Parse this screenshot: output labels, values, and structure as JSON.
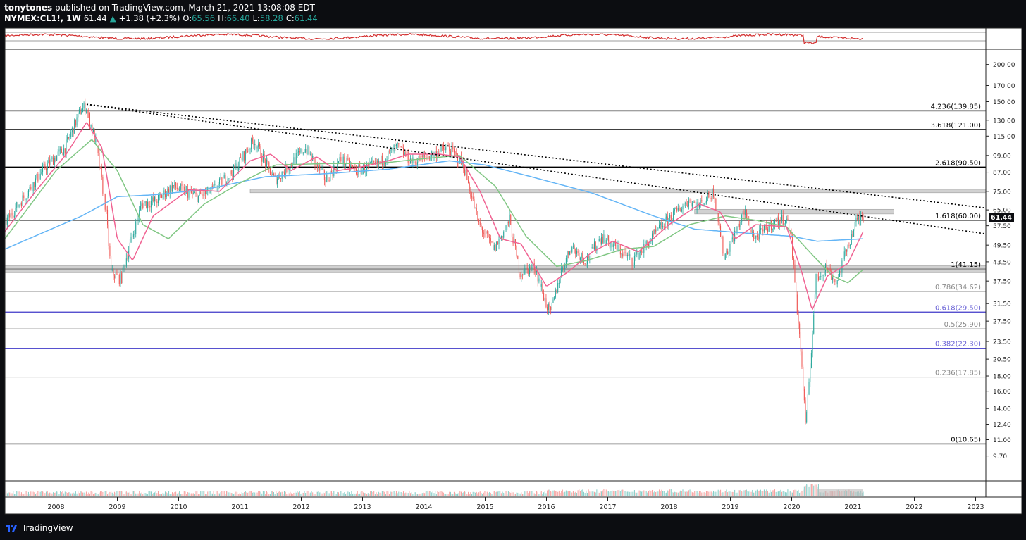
{
  "header": {
    "publisher": "tonytones",
    "published_on": "published on TradingView.com, March 21, 2021 13:08:08 EDT",
    "symbol": "NYMEX:CL1!, 1W",
    "last": "61.44",
    "change": "+1.38 (+2.3%)",
    "o_label": "O:",
    "o_value": "65.56",
    "h_label": "H:",
    "h_value": "66.40",
    "l_label": "L:",
    "l_value": "58.28",
    "c_label": "C:",
    "c_value": "61.44"
  },
  "footer": {
    "brand": "TradingView"
  },
  "colors": {
    "background": "#ffffff",
    "up": "#26a69a",
    "down": "#ef5350",
    "ma_fast": "#f06292",
    "ma_mid": "#81c784",
    "ma_slow": "#64b5f6",
    "indicator": "#d32f2f",
    "fib_blue": "#3f38c8",
    "fib_gray": "#888888"
  },
  "chart_data": {
    "type": "candlestick",
    "scale": "log",
    "ylim": [
      8,
      225
    ],
    "xlim": [
      "2007-03",
      "2023-03"
    ],
    "price_ticks": [
      "200.00",
      "170.00",
      "150.00",
      "130.00",
      "115.00",
      "99.00",
      "87.00",
      "75.00",
      "65.00",
      "57.50",
      "49.50",
      "43.50",
      "37.50",
      "31.50",
      "27.50",
      "23.50",
      "20.50",
      "18.00",
      "16.00",
      "14.00",
      "12.40",
      "11.00",
      "9.70"
    ],
    "price_tick_values": [
      200,
      170,
      150,
      130,
      115,
      99,
      87,
      75,
      65,
      57.5,
      49.5,
      43.5,
      37.5,
      31.5,
      27.5,
      23.5,
      20.5,
      18,
      16,
      14,
      12.4,
      11,
      9.7
    ],
    "year_ticks": [
      "2008",
      "2009",
      "2010",
      "2011",
      "2012",
      "2013",
      "2014",
      "2015",
      "2016",
      "2017",
      "2018",
      "2019",
      "2020",
      "2021",
      "2022",
      "2023"
    ],
    "last_price_label": "61.44",
    "fib_levels": [
      {
        "label": "4.236(139.85)",
        "value": 139.85,
        "style": "black"
      },
      {
        "label": "3.618(121.00)",
        "value": 121.0,
        "style": "black"
      },
      {
        "label": "2.618(90.50)",
        "value": 90.5,
        "style": "black"
      },
      {
        "label": "1.618(60.00)",
        "value": 60.0,
        "style": "black"
      },
      {
        "label": "1(41.15)",
        "value": 41.15,
        "style": "black"
      },
      {
        "label": "0.786(34.62)",
        "value": 34.62,
        "style": "gray"
      },
      {
        "label": "0.618(29.50)",
        "value": 29.5,
        "style": "blue"
      },
      {
        "label": "0.5(25.90)",
        "value": 25.9,
        "style": "gray"
      },
      {
        "label": "0.382(22.30)",
        "value": 22.3,
        "style": "blue"
      },
      {
        "label": "0.236(17.85)",
        "value": 17.85,
        "style": "gray"
      },
      {
        "label": "0(10.65)",
        "value": 10.65,
        "style": "black"
      }
    ],
    "price_path": [
      [
        "2007-03",
        58
      ],
      [
        "2007-07",
        72
      ],
      [
        "2007-11",
        90
      ],
      [
        "2008-03",
        105
      ],
      [
        "2008-06",
        140
      ],
      [
        "2008-07",
        145
      ],
      [
        "2008-09",
        110
      ],
      [
        "2008-11",
        65
      ],
      [
        "2008-12",
        40
      ],
      [
        "2009-02",
        38
      ],
      [
        "2009-03",
        45
      ],
      [
        "2009-06",
        68
      ],
      [
        "2009-09",
        70
      ],
      [
        "2009-12",
        78
      ],
      [
        "2010-05",
        72
      ],
      [
        "2010-08",
        76
      ],
      [
        "2010-12",
        88
      ],
      [
        "2011-04",
        112
      ],
      [
        "2011-06",
        95
      ],
      [
        "2011-08",
        82
      ],
      [
        "2011-10",
        88
      ],
      [
        "2012-02",
        105
      ],
      [
        "2012-06",
        82
      ],
      [
        "2012-09",
        96
      ],
      [
        "2012-12",
        88
      ],
      [
        "2013-04",
        92
      ],
      [
        "2013-08",
        106
      ],
      [
        "2013-11",
        94
      ],
      [
        "2014-03",
        100
      ],
      [
        "2014-06",
        105
      ],
      [
        "2014-09",
        92
      ],
      [
        "2014-12",
        58
      ],
      [
        "2015-03",
        48
      ],
      [
        "2015-06",
        60
      ],
      [
        "2015-08",
        40
      ],
      [
        "2015-11",
        42
      ],
      [
        "2016-01",
        32
      ],
      [
        "2016-02",
        29
      ],
      [
        "2016-04",
        40
      ],
      [
        "2016-06",
        49
      ],
      [
        "2016-09",
        44
      ],
      [
        "2016-12",
        53
      ],
      [
        "2017-06",
        44
      ],
      [
        "2017-09",
        50
      ],
      [
        "2017-12",
        58
      ],
      [
        "2018-05",
        70
      ],
      [
        "2018-07",
        67
      ],
      [
        "2018-10",
        75
      ],
      [
        "2018-12",
        45
      ],
      [
        "2019-04",
        64
      ],
      [
        "2019-06",
        52
      ],
      [
        "2019-09",
        58
      ],
      [
        "2019-12",
        61
      ],
      [
        "2020-01",
        55
      ],
      [
        "2020-03",
        22
      ],
      [
        "2020-04",
        12
      ],
      [
        "2020-06",
        38
      ],
      [
        "2020-08",
        42
      ],
      [
        "2020-10",
        37
      ],
      [
        "2020-12",
        48
      ],
      [
        "2021-02",
        60
      ],
      [
        "2021-03",
        62
      ]
    ],
    "ma_fast_path": [
      [
        "2007-03",
        55
      ],
      [
        "2007-09",
        75
      ],
      [
        "2008-03",
        100
      ],
      [
        "2008-07",
        128
      ],
      [
        "2008-10",
        105
      ],
      [
        "2009-01",
        52
      ],
      [
        "2009-04",
        44
      ],
      [
        "2009-08",
        62
      ],
      [
        "2010-03",
        76
      ],
      [
        "2010-09",
        75
      ],
      [
        "2011-03",
        95
      ],
      [
        "2011-07",
        100
      ],
      [
        "2011-11",
        88
      ],
      [
        "2012-04",
        98
      ],
      [
        "2012-08",
        88
      ],
      [
        "2012-12",
        90
      ],
      [
        "2013-06",
        95
      ],
      [
        "2013-10",
        100
      ],
      [
        "2014-04",
        100
      ],
      [
        "2014-08",
        98
      ],
      [
        "2014-12",
        75
      ],
      [
        "2015-04",
        52
      ],
      [
        "2015-08",
        50
      ],
      [
        "2016-01",
        36
      ],
      [
        "2016-05",
        40
      ],
      [
        "2016-10",
        47
      ],
      [
        "2017-02",
        51
      ],
      [
        "2017-07",
        47
      ],
      [
        "2018-01",
        58
      ],
      [
        "2018-07",
        68
      ],
      [
        "2018-11",
        64
      ],
      [
        "2019-02",
        52
      ],
      [
        "2019-06",
        58
      ],
      [
        "2019-12",
        57
      ],
      [
        "2020-03",
        40
      ],
      [
        "2020-05",
        30
      ],
      [
        "2020-08",
        39
      ],
      [
        "2020-12",
        43
      ],
      [
        "2021-03",
        55
      ]
    ],
    "ma_mid_path": [
      [
        "2007-03",
        52
      ],
      [
        "2008-01",
        88
      ],
      [
        "2008-08",
        112
      ],
      [
        "2009-01",
        88
      ],
      [
        "2009-06",
        58
      ],
      [
        "2009-11",
        52
      ],
      [
        "2010-06",
        68
      ],
      [
        "2011-01",
        80
      ],
      [
        "2011-08",
        92
      ],
      [
        "2012-06",
        93
      ],
      [
        "2013-04",
        93
      ],
      [
        "2014-02",
        97
      ],
      [
        "2014-08",
        99
      ],
      [
        "2015-03",
        78
      ],
      [
        "2015-09",
        53
      ],
      [
        "2016-03",
        42
      ],
      [
        "2016-09",
        44
      ],
      [
        "2017-04",
        48
      ],
      [
        "2017-10",
        49
      ],
      [
        "2018-05",
        58
      ],
      [
        "2018-12",
        62
      ],
      [
        "2019-06",
        60
      ],
      [
        "2019-12",
        57
      ],
      [
        "2020-05",
        46
      ],
      [
        "2020-09",
        39
      ],
      [
        "2020-12",
        37
      ],
      [
        "2021-03",
        41
      ]
    ],
    "ma_slow_path": [
      [
        "2007-03",
        48
      ],
      [
        "2008-06",
        62
      ],
      [
        "2009-01",
        72
      ],
      [
        "2009-08",
        73
      ],
      [
        "2010-06",
        76
      ],
      [
        "2011-06",
        84
      ],
      [
        "2012-06",
        86
      ],
      [
        "2013-06",
        89
      ],
      [
        "2014-06",
        95
      ],
      [
        "2015-01",
        92
      ],
      [
        "2015-10",
        84
      ],
      [
        "2016-10",
        74
      ],
      [
        "2017-10",
        62
      ],
      [
        "2018-06",
        56
      ],
      [
        "2019-06",
        54
      ],
      [
        "2020-01",
        53
      ],
      [
        "2020-06",
        51
      ],
      [
        "2021-03",
        52
      ]
    ],
    "trendlines": [
      {
        "from": [
          "2008-07",
          147
        ],
        "to": [
          "2023-03",
          66
        ]
      },
      {
        "from": [
          "2008-07",
          147
        ],
        "to": [
          "2023-03",
          54
        ]
      }
    ],
    "zones": [
      {
        "from": "2011-03",
        "to": "2023-03",
        "low": 74.2,
        "high": 76.2
      },
      {
        "from": "2018-06",
        "to": "2021-09",
        "low": 63.0,
        "high": 65.3
      },
      {
        "from": "2007-03",
        "to": "2023-03",
        "low": 40.0,
        "high": 42.2
      }
    ]
  }
}
